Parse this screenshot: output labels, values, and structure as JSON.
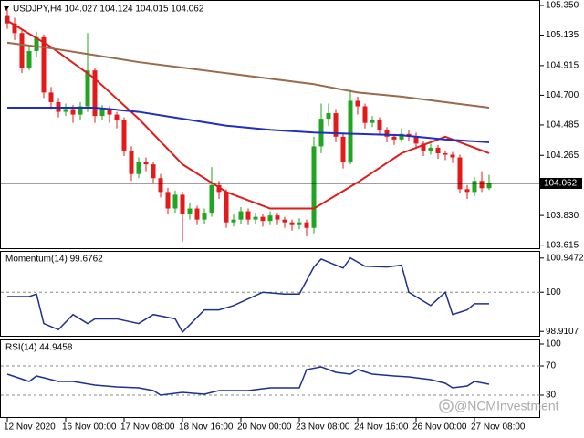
{
  "chart_data": [
    {
      "type": "candlestick",
      "title": "USDJPY,H4  104.027 104.124 104.015 104.062",
      "categories": [
        null,
        null,
        null,
        null,
        null,
        null,
        null,
        null,
        null,
        null,
        null,
        null,
        null,
        null,
        null,
        null,
        null,
        null,
        null,
        null,
        null,
        null,
        null,
        null,
        null,
        null,
        null,
        null,
        null,
        null,
        null,
        null,
        null,
        null,
        null,
        null,
        null,
        null,
        null,
        null,
        null,
        null,
        null,
        null,
        null,
        null,
        null,
        null,
        null,
        null,
        null,
        null,
        null,
        null,
        null,
        null,
        null,
        null,
        null,
        null,
        null,
        null,
        null,
        null,
        null,
        null,
        null
      ],
      "open": [
        105.28,
        105.22,
        105.15,
        104.9,
        105.02,
        105.12,
        104.72,
        104.65,
        104.58,
        104.6,
        104.56,
        104.62,
        104.88,
        104.55,
        104.6,
        104.56,
        104.52,
        104.3,
        104.13,
        104.22,
        104.2,
        104.1,
        104.0,
        103.88,
        103.98,
        103.84,
        103.88,
        103.8,
        103.85,
        104.05,
        104.0,
        103.78,
        103.8,
        103.86,
        103.8,
        103.82,
        103.79,
        103.83,
        103.8,
        103.78,
        103.76,
        103.78,
        103.74,
        104.33,
        104.53,
        104.57,
        104.4,
        104.22,
        104.66,
        104.62,
        104.5,
        104.52,
        104.45,
        104.4,
        104.38,
        104.42,
        104.4,
        104.35,
        104.3,
        104.32,
        104.28,
        104.27,
        104.25,
        104.02,
        104.0,
        104.08,
        104.027
      ],
      "high": [
        105.32,
        105.26,
        105.18,
        105.06,
        105.16,
        105.14,
        104.76,
        104.68,
        104.64,
        104.63,
        104.65,
        105.15,
        104.9,
        104.63,
        104.62,
        104.58,
        104.54,
        104.33,
        104.25,
        104.25,
        104.22,
        104.13,
        104.03,
        104.01,
        104.0,
        103.92,
        103.9,
        103.88,
        104.18,
        104.08,
        104.02,
        103.84,
        103.89,
        103.88,
        103.85,
        103.84,
        103.86,
        103.85,
        103.82,
        103.8,
        103.81,
        103.8,
        104.4,
        104.64,
        104.64,
        104.6,
        104.43,
        104.74,
        104.69,
        104.64,
        104.55,
        104.54,
        104.47,
        104.42,
        104.46,
        104.45,
        104.43,
        104.37,
        104.35,
        104.34,
        104.3,
        104.29,
        104.27,
        104.05,
        104.11,
        104.15,
        104.124
      ],
      "low": [
        105.18,
        105.1,
        104.86,
        104.88,
        104.98,
        104.68,
        104.6,
        104.54,
        104.55,
        104.5,
        104.52,
        104.58,
        104.5,
        104.52,
        104.5,
        104.46,
        104.26,
        104.08,
        104.1,
        104.15,
        104.06,
        103.96,
        103.84,
        103.85,
        103.64,
        103.8,
        103.76,
        103.77,
        103.82,
        103.95,
        103.74,
        103.75,
        103.77,
        103.76,
        103.77,
        103.75,
        103.76,
        103.76,
        103.74,
        103.72,
        103.73,
        103.68,
        103.7,
        104.28,
        104.48,
        104.36,
        104.17,
        104.2,
        104.56,
        104.46,
        104.47,
        104.41,
        104.36,
        104.34,
        104.36,
        104.37,
        104.31,
        104.26,
        104.27,
        104.24,
        104.23,
        104.21,
        103.99,
        103.95,
        103.97,
        104.0,
        104.015
      ],
      "close": [
        105.22,
        105.15,
        104.9,
        105.02,
        105.12,
        104.72,
        104.65,
        104.58,
        104.6,
        104.56,
        104.62,
        104.88,
        104.55,
        104.6,
        104.56,
        104.52,
        104.3,
        104.13,
        104.22,
        104.2,
        104.1,
        104.0,
        103.88,
        103.98,
        103.84,
        103.88,
        103.8,
        103.85,
        104.05,
        104.0,
        103.78,
        103.8,
        103.86,
        103.8,
        103.82,
        103.79,
        103.83,
        103.8,
        103.78,
        103.76,
        103.78,
        103.74,
        104.33,
        104.53,
        104.57,
        104.4,
        104.22,
        104.66,
        104.62,
        104.5,
        104.52,
        104.45,
        104.4,
        104.38,
        104.42,
        104.4,
        104.35,
        104.3,
        104.32,
        104.28,
        104.27,
        104.25,
        104.02,
        104.0,
        104.08,
        104.027,
        104.062
      ],
      "up_color": "#1fa51f",
      "down_color": "#e31a1a",
      "series": [
        {
          "color": "#e31a1a",
          "x": [
            0,
            6,
            12,
            18,
            24,
            30,
            36,
            42,
            48,
            54,
            60,
            66
          ],
          "values": [
            105.24,
            105.05,
            104.82,
            104.53,
            104.2,
            104.0,
            103.88,
            103.88,
            104.07,
            104.28,
            104.4,
            104.28
          ]
        },
        {
          "color": "#1f2fbf",
          "x": [
            0,
            6,
            12,
            18,
            24,
            30,
            36,
            42,
            48,
            54,
            60,
            66
          ],
          "values": [
            104.61,
            104.61,
            104.61,
            104.58,
            104.53,
            104.48,
            104.45,
            104.43,
            104.42,
            104.41,
            104.38,
            104.36
          ]
        },
        {
          "color": "#9a6a4a",
          "x": [
            0,
            6,
            12,
            18,
            24,
            30,
            36,
            42,
            48,
            54,
            60,
            66
          ],
          "values": [
            105.08,
            105.04,
            104.99,
            104.94,
            104.9,
            104.86,
            104.82,
            104.78,
            104.72,
            104.69,
            104.65,
            104.61
          ]
        }
      ],
      "last_price": {
        "value": 104.062,
        "label": "104.062"
      },
      "xlim": [
        -1,
        73
      ],
      "ylim": [
        103.593,
        105.383
      ],
      "yticks": [
        {
          "value": 105.35,
          "label": "105.350"
        },
        {
          "value": 105.135,
          "label": "105.135"
        },
        {
          "value": 104.915,
          "label": "104.915"
        },
        {
          "value": 104.7,
          "label": "104.700"
        },
        {
          "value": 104.485,
          "label": "104.485"
        },
        {
          "value": 104.265,
          "label": "104.265"
        },
        {
          "value": 103.83,
          "label": "103.830"
        },
        {
          "value": 103.615,
          "label": "103.615"
        }
      ]
    },
    {
      "type": "line",
      "title": "Momentum(14) 99.6762",
      "series": [
        {
          "color": "#1f2f8f",
          "x": [
            0,
            3,
            4,
            5,
            7,
            9,
            11,
            12,
            15,
            18,
            20,
            23,
            24,
            27,
            29,
            31,
            35,
            38,
            40,
            42,
            43,
            45,
            46,
            47,
            49,
            52,
            54,
            55,
            58,
            60,
            61,
            63,
            64,
            66
          ],
          "values": [
            99.88,
            99.88,
            99.95,
            99.13,
            98.96,
            99.38,
            99.13,
            99.26,
            99.26,
            99.13,
            99.38,
            99.26,
            98.89,
            99.51,
            99.51,
            99.63,
            100.0,
            99.95,
            99.95,
            100.7,
            100.92,
            100.75,
            100.67,
            100.95,
            100.72,
            100.7,
            100.75,
            100.0,
            99.63,
            100.0,
            99.38,
            99.51,
            99.68,
            99.68
          ]
        }
      ],
      "levels": [
        100
      ],
      "xlim": [
        -1,
        73
      ],
      "ylim": [
        98.79,
        101.12
      ],
      "yticks": [
        100.9472,
        100,
        98.9107
      ]
    },
    {
      "type": "line",
      "title": "RSI(14) 44.9458",
      "series": [
        {
          "color": "#1f2f8f",
          "x": [
            0,
            3,
            4,
            7,
            9,
            12,
            15,
            18,
            20,
            21,
            24,
            27,
            29,
            33,
            36,
            40,
            41,
            43,
            45,
            47,
            48,
            50,
            53,
            55,
            58,
            60,
            61,
            63,
            64,
            66
          ],
          "values": [
            58.75,
            48.75,
            56.25,
            48.75,
            48.75,
            43.75,
            41.25,
            40,
            36.25,
            30,
            33.75,
            31.25,
            36.25,
            36.25,
            40,
            40,
            65,
            68.75,
            61.25,
            58.75,
            65,
            58.75,
            56.25,
            55,
            51.25,
            46.25,
            40,
            42.5,
            48.75,
            44.95
          ]
        }
      ],
      "levels": [
        70,
        30
      ],
      "xlim": [
        -1,
        73
      ],
      "ylim": [
        0,
        105
      ],
      "yticks": [
        100,
        70,
        30
      ],
      "xticks": [
        {
          "value": 0,
          "label": "12 Nov 2020"
        },
        {
          "value": 8,
          "label": "16 Nov 00:00"
        },
        {
          "value": 16,
          "label": "17 Nov 08:00"
        },
        {
          "value": 24,
          "label": "18 Nov 16:00"
        },
        {
          "value": 32,
          "label": "20 Nov 00:00"
        },
        {
          "value": 40,
          "label": "23 Nov 08:00"
        },
        {
          "value": 48,
          "label": "24 Nov 16:00"
        },
        {
          "value": 56,
          "label": "26 Nov 00:00"
        },
        {
          "value": 64,
          "label": "27 Nov 08:00"
        }
      ]
    }
  ],
  "watermark": "@NCMInvestment"
}
